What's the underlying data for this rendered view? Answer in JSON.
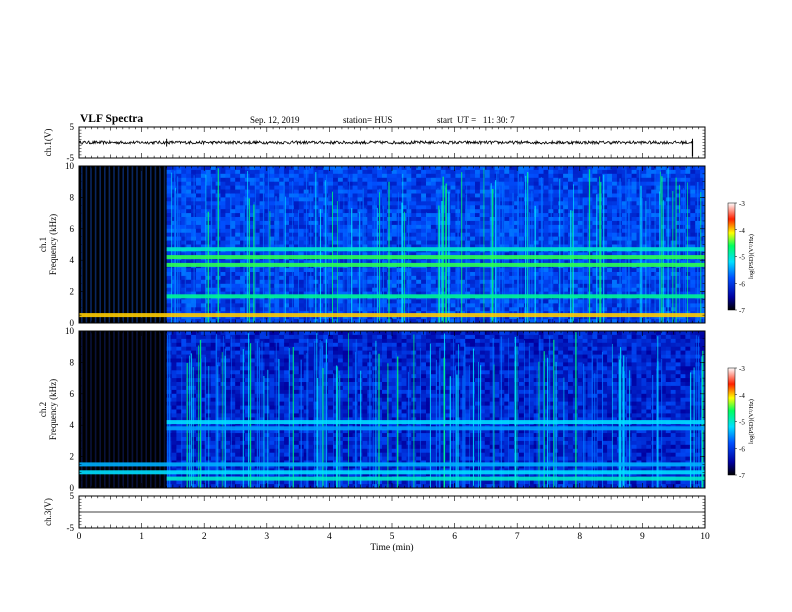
{
  "header": {
    "title": "VLF Spectra",
    "date": "Sep. 12, 2019",
    "station": "station= HUS",
    "start": "start  UT =   11: 30: 7"
  },
  "chart_data": [
    {
      "type": "line",
      "panel": "ch1-waveform",
      "ylabel": "ch.1(V)",
      "ylim": [
        -5,
        5
      ],
      "yticks": [
        "5",
        "-5"
      ],
      "xlim": [
        0,
        10
      ],
      "baseline": 0.0,
      "noise_amplitude": 0.5,
      "spikes_at_min": [
        1.4,
        9.8
      ]
    },
    {
      "type": "heatmap",
      "panel": "ch1-spectrogram",
      "ylabel": "ch.1\nFrequency  (kHz)",
      "ylim": [
        0,
        10
      ],
      "yticks": [
        "0",
        "2",
        "4",
        "6",
        "8",
        "10"
      ],
      "xlim": [
        0,
        10
      ],
      "transition_min": 1.4,
      "bands_khz": [
        {
          "f": 0.5,
          "level": 0.75,
          "from": 0
        },
        {
          "f": 1.7,
          "level": 0.55,
          "from": 1.4
        },
        {
          "f": 3.7,
          "level": 0.62,
          "from": 1.4
        },
        {
          "f": 4.2,
          "level": 0.62,
          "from": 1.4
        },
        {
          "f": 4.7,
          "level": 0.5,
          "from": 1.4
        }
      ],
      "colorbar": {
        "label": "log(PSD)(V²/Hz)",
        "min": -7,
        "max": -3,
        "ticks": [
          "-3",
          "-4",
          "-5",
          "-6",
          "-7"
        ]
      }
    },
    {
      "type": "heatmap",
      "panel": "ch2-spectrogram",
      "ylabel": "ch.2\nFrequency  (kHz)",
      "ylim": [
        0,
        10
      ],
      "yticks": [
        "0",
        "2",
        "4",
        "6",
        "8",
        "10"
      ],
      "xlim": [
        0,
        10
      ],
      "transition_min": 1.4,
      "bands_khz": [
        {
          "f": 0.6,
          "level": 0.5,
          "from": 1.4
        },
        {
          "f": 1.0,
          "level": 0.45,
          "from": 0
        },
        {
          "f": 1.5,
          "level": 0.4,
          "from": 0
        },
        {
          "f": 3.8,
          "level": 0.38,
          "from": 1.4
        },
        {
          "f": 4.2,
          "level": 0.45,
          "from": 1.4
        }
      ],
      "colorbar": {
        "label": "log(PSD)(V²/Hz)",
        "min": -7,
        "max": -3,
        "ticks": [
          "-3",
          "-4",
          "-5",
          "-6",
          "-7"
        ]
      }
    },
    {
      "type": "line",
      "panel": "ch3-waveform",
      "ylabel": "ch.3(V)",
      "ylim": [
        -5,
        5
      ],
      "yticks": [
        "5",
        "-5"
      ],
      "xlim": [
        0,
        10
      ],
      "baseline": 0.0
    }
  ],
  "xaxis": {
    "label": "Time  (min)",
    "ticks": [
      "0",
      "1",
      "2",
      "3",
      "4",
      "5",
      "6",
      "7",
      "8",
      "9",
      "10"
    ]
  }
}
